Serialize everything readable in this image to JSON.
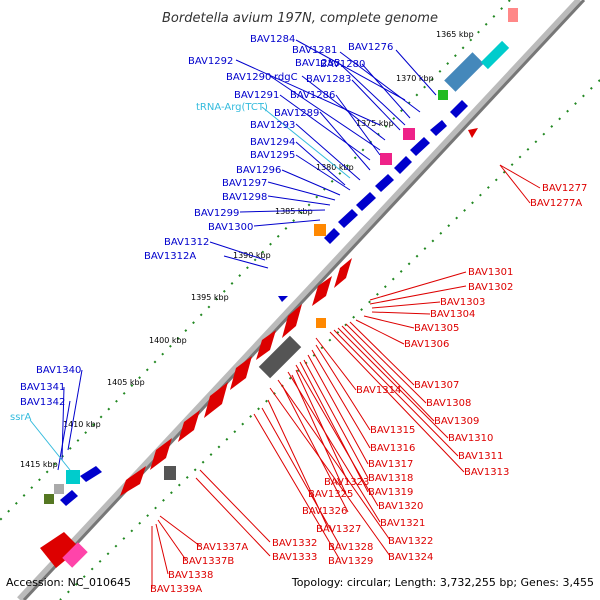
{
  "title": "Bordetella avium 197N, complete genome",
  "footer": {
    "accession": "Accession: NC_010645",
    "summary": "Topology: circular; Length: 3,732,255 bp; Genes: 3,455"
  },
  "colors": {
    "forward": "#0000cc",
    "reverse": "#dd0000",
    "trna": "#33bbdd",
    "backbone": "#999999"
  },
  "ruler_ticks": [
    "1365 kbp",
    "1370 kbp",
    "1375 kbp",
    "1380 kbp",
    "1385 kbp",
    "1390 kbp",
    "1395 kbp",
    "1400 kbp",
    "1405 kbp",
    "1410 kbp",
    "1415 kbp"
  ],
  "gene_labels_forward": [
    "BAV1284",
    "BAV1281",
    "BAV1276",
    "BAV1292",
    "BAV1285",
    "BAV1280",
    "BAV1290",
    "rdgC",
    "BAV1283",
    "BAV1291",
    "BAV1286",
    "BAV1289",
    "BAV1293",
    "BAV1294",
    "BAV1295",
    "BAV1296",
    "BAV1297",
    "BAV1298",
    "BAV1299",
    "BAV1300",
    "BAV1312",
    "BAV1312A",
    "BAV1340",
    "BAV1341",
    "BAV1342"
  ],
  "rna_labels": [
    "tRNA-Arg(TCT)",
    "ssrA"
  ],
  "gene_labels_reverse": [
    "BAV1277",
    "BAV1277A",
    "BAV1301",
    "BAV1302",
    "BAV1303",
    "BAV1304",
    "BAV1305",
    "BAV1306",
    "BAV1307",
    "BAV1308",
    "BAV1314",
    "BAV1309",
    "BAV1310",
    "BAV1315",
    "BAV1316",
    "BAV1311",
    "BAV1313",
    "BAV1317",
    "BAV1323",
    "BAV1318",
    "BAV1325",
    "BAV1319",
    "BAV1326",
    "BAV1320",
    "BAV1327",
    "BAV1321",
    "BAV1332",
    "BAV1328",
    "BAV1322",
    "BAV1333",
    "BAV1329",
    "BAV1324",
    "BAV1337A",
    "BAV1337B",
    "BAV1338",
    "BAV1339A"
  ]
}
